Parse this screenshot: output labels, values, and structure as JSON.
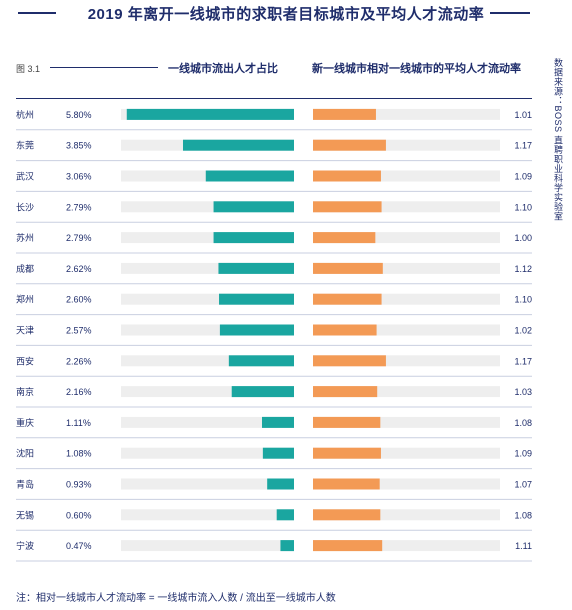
{
  "title": "2019 年离开一线城市的求职者目标城市及平均人才流动率",
  "figure_label": "图 3.1",
  "column_headers": {
    "share": "一线城市流出人才占比",
    "mobility": "新一线城市相对一线城市的平均人才流动率"
  },
  "source": "数据来源：BOSS 直聘职业科学实验室",
  "footnote": "注：相对一线城市人才流动率 = 一线城市流入人数 / 流出至一线城市人数",
  "colors": {
    "share_bar": "#1aa6a0",
    "mobility_bar": "#f39a55",
    "track": "#eeeeee",
    "text": "#1f2d6b"
  },
  "chart_data": {
    "type": "bar",
    "categories": [
      "杭州",
      "东莞",
      "武汉",
      "长沙",
      "苏州",
      "成都",
      "郑州",
      "天津",
      "西安",
      "南京",
      "重庆",
      "沈阳",
      "青岛",
      "无锡",
      "宁波"
    ],
    "series": [
      {
        "name": "一线城市流出人才占比",
        "values": [
          5.8,
          3.85,
          3.06,
          2.79,
          2.79,
          2.62,
          2.6,
          2.57,
          2.26,
          2.16,
          1.11,
          1.08,
          0.93,
          0.6,
          0.47
        ],
        "labels": [
          "5.80%",
          "3.85%",
          "3.06%",
          "2.79%",
          "2.79%",
          "2.62%",
          "2.60%",
          "2.57%",
          "2.26%",
          "2.16%",
          "1.11%",
          "1.08%",
          "0.93%",
          "0.60%",
          "0.47%"
        ]
      },
      {
        "name": "新一线城市相对一线城市的平均人才流动率",
        "values": [
          1.01,
          1.17,
          1.09,
          1.1,
          1.0,
          1.12,
          1.1,
          1.02,
          1.17,
          1.03,
          1.08,
          1.09,
          1.07,
          1.08,
          1.11
        ],
        "labels": [
          "1.01",
          "1.17",
          "1.09",
          "1.10",
          "1.00",
          "1.12",
          "1.10",
          "1.02",
          "1.17",
          "1.03",
          "1.08",
          "1.09",
          "1.07",
          "1.08",
          "1.11"
        ]
      }
    ],
    "share_xlim": [
      0,
      6.0
    ],
    "mobility_xlim": [
      0,
      3.0
    ]
  }
}
